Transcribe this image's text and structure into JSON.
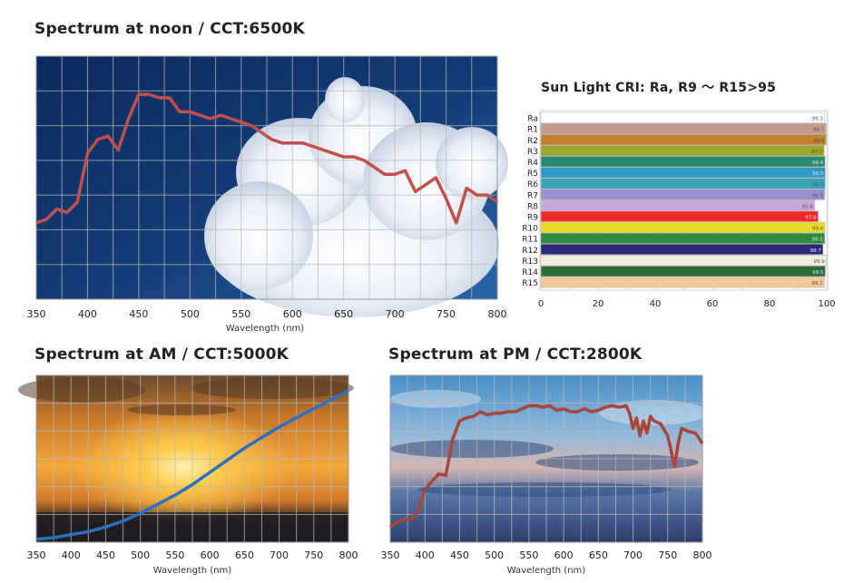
{
  "chart_data": [
    {
      "type": "line",
      "title": "Spectrum at noon / CCT:6500K",
      "xlabel": "Wavelength (nm)",
      "ylabel": "",
      "xlim": [
        350,
        800
      ],
      "x_ticks": [
        350,
        400,
        450,
        500,
        550,
        600,
        650,
        700,
        750,
        800
      ],
      "grid": true,
      "line_color": "#c0504d",
      "series": [
        {
          "x": [
            350,
            360,
            370,
            380,
            390,
            400,
            410,
            420,
            430,
            440,
            450,
            460,
            470,
            480,
            490,
            500,
            510,
            520,
            530,
            540,
            550,
            560,
            570,
            580,
            590,
            600,
            610,
            620,
            630,
            640,
            650,
            660,
            670,
            680,
            690,
            700,
            710,
            720,
            730,
            740,
            750,
            760,
            770,
            780,
            790,
            800
          ],
          "y": [
            22,
            23,
            26,
            25,
            28,
            42,
            46,
            47,
            43,
            52,
            59,
            59,
            58,
            58,
            54,
            54,
            53,
            52,
            53,
            52,
            51,
            50,
            48,
            46,
            45,
            45,
            45,
            44,
            43,
            42,
            41,
            41,
            40,
            38,
            36,
            36,
            37,
            31,
            33,
            35,
            29,
            22,
            32,
            30,
            30,
            28
          ]
        }
      ]
    },
    {
      "type": "bar",
      "title": "Sun Light CRI: Ra, R9 ～ R15>95",
      "categories": [
        "Ra",
        "R1",
        "R2",
        "R3",
        "R4",
        "R5",
        "R6",
        "R7",
        "R8",
        "R9",
        "R10",
        "R11",
        "R12",
        "R13",
        "R14",
        "R15"
      ],
      "values": [
        99.3,
        99.7,
        99.8,
        99.1,
        99.4,
        99.5,
        99.5,
        99.3,
        95.8,
        97.0,
        99.4,
        99.3,
        98.7,
        99.9,
        99.5,
        99.2
      ],
      "value_labels": [
        "99.3",
        "99.7",
        "99.8",
        "99.1",
        "99.4",
        "99.5",
        "99.5",
        "99.3",
        "95.8",
        "97.0",
        "99.4",
        "99.3",
        "98.7",
        "99.9",
        "99.5",
        "99.2"
      ],
      "colors": [
        "#ffffff",
        "#c49a8a",
        "#c0822a",
        "#9ea62a",
        "#2a8a70",
        "#2f99c8",
        "#3aa5b5",
        "#9b8fd1",
        "#c6a8d6",
        "#ee2a26",
        "#e9d92a",
        "#2e8b3f",
        "#2b2a7a",
        "#f4ece2",
        "#2c6e3a",
        "#f1c99a"
      ],
      "xlim": [
        0,
        100
      ],
      "x_ticks": [
        0,
        20,
        40,
        60,
        80,
        100
      ],
      "grid": true
    },
    {
      "type": "line",
      "title": "Spectrum at AM / CCT:5000K",
      "xlabel": "Wavelength (nm)",
      "ylabel": "",
      "xlim": [
        350,
        800
      ],
      "x_ticks": [
        350,
        400,
        450,
        500,
        550,
        600,
        650,
        700,
        750,
        800
      ],
      "grid": true,
      "line_color": "#2c6fbf",
      "series": [
        {
          "x": [
            350,
            375,
            400,
            425,
            450,
            475,
            500,
            525,
            550,
            575,
            600,
            625,
            650,
            675,
            700,
            725,
            750,
            775,
            800
          ],
          "y": [
            2,
            3,
            5,
            7,
            10,
            14,
            19,
            25,
            31,
            38,
            46,
            54,
            62,
            69,
            76,
            82,
            88,
            94,
            100
          ]
        }
      ]
    },
    {
      "type": "line",
      "title": "Spectrum at PM / CCT:2800K",
      "xlabel": "Wavelength (nm)",
      "ylabel": "",
      "xlim": [
        350,
        800
      ],
      "x_ticks": [
        350,
        400,
        450,
        500,
        550,
        600,
        650,
        700,
        750,
        800
      ],
      "grid": true,
      "line_color": "#a8463c",
      "series": [
        {
          "x": [
            350,
            360,
            370,
            380,
            390,
            400,
            410,
            420,
            430,
            440,
            450,
            460,
            470,
            480,
            490,
            500,
            510,
            520,
            530,
            540,
            550,
            560,
            570,
            580,
            590,
            600,
            610,
            620,
            630,
            640,
            650,
            660,
            670,
            680,
            690,
            695,
            700,
            705,
            710,
            715,
            720,
            725,
            730,
            740,
            750,
            755,
            760,
            765,
            770,
            780,
            790,
            800
          ],
          "y": [
            10,
            13,
            15,
            15,
            20,
            35,
            40,
            45,
            44,
            68,
            80,
            82,
            83,
            86,
            84,
            85,
            85,
            86,
            86,
            88,
            90,
            90,
            89,
            90,
            87,
            88,
            86,
            86,
            88,
            86,
            87,
            89,
            90,
            89,
            90,
            85,
            75,
            82,
            70,
            80,
            72,
            83,
            80,
            78,
            70,
            60,
            50,
            65,
            75,
            73,
            72,
            65
          ]
        }
      ]
    }
  ]
}
